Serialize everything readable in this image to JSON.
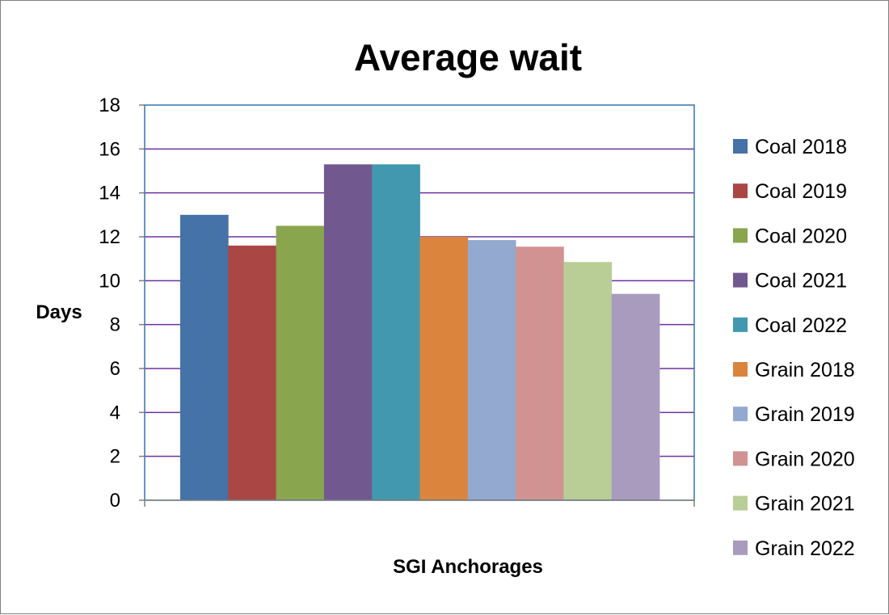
{
  "chart_data": {
    "type": "bar",
    "title": "Average wait",
    "xlabel": "SGI Anchorages",
    "ylabel": "Days",
    "categories": [
      "SGI Anchorages"
    ],
    "ylim": [
      0,
      18
    ],
    "yticks": [
      "0",
      "2",
      "4",
      "6",
      "8",
      "10",
      "12",
      "14",
      "16",
      "18"
    ],
    "grid": true,
    "legend_position": "right",
    "series": [
      {
        "name": "Coal 2018",
        "values": [
          13.0
        ],
        "color": "#4572A7"
      },
      {
        "name": "Coal 2019",
        "values": [
          11.6
        ],
        "color": "#AA4643"
      },
      {
        "name": "Coal 2020",
        "values": [
          12.5
        ],
        "color": "#89A54E"
      },
      {
        "name": "Coal 2021",
        "values": [
          15.3
        ],
        "color": "#71588F"
      },
      {
        "name": "Coal 2022",
        "values": [
          15.3
        ],
        "color": "#4198AF"
      },
      {
        "name": "Grain 2018",
        "values": [
          12.0
        ],
        "color": "#DB843D"
      },
      {
        "name": "Grain 2019",
        "values": [
          11.85
        ],
        "color": "#93A9CF"
      },
      {
        "name": "Grain 2020",
        "values": [
          11.55
        ],
        "color": "#D19392"
      },
      {
        "name": "Grain 2021",
        "values": [
          10.85
        ],
        "color": "#B9CD96"
      },
      {
        "name": "Grain 2022",
        "values": [
          9.4
        ],
        "color": "#A99BBD"
      }
    ],
    "colors": {
      "gridline": "#7030A0",
      "plot_border": "#2E75B6",
      "axis": "#808080"
    }
  }
}
